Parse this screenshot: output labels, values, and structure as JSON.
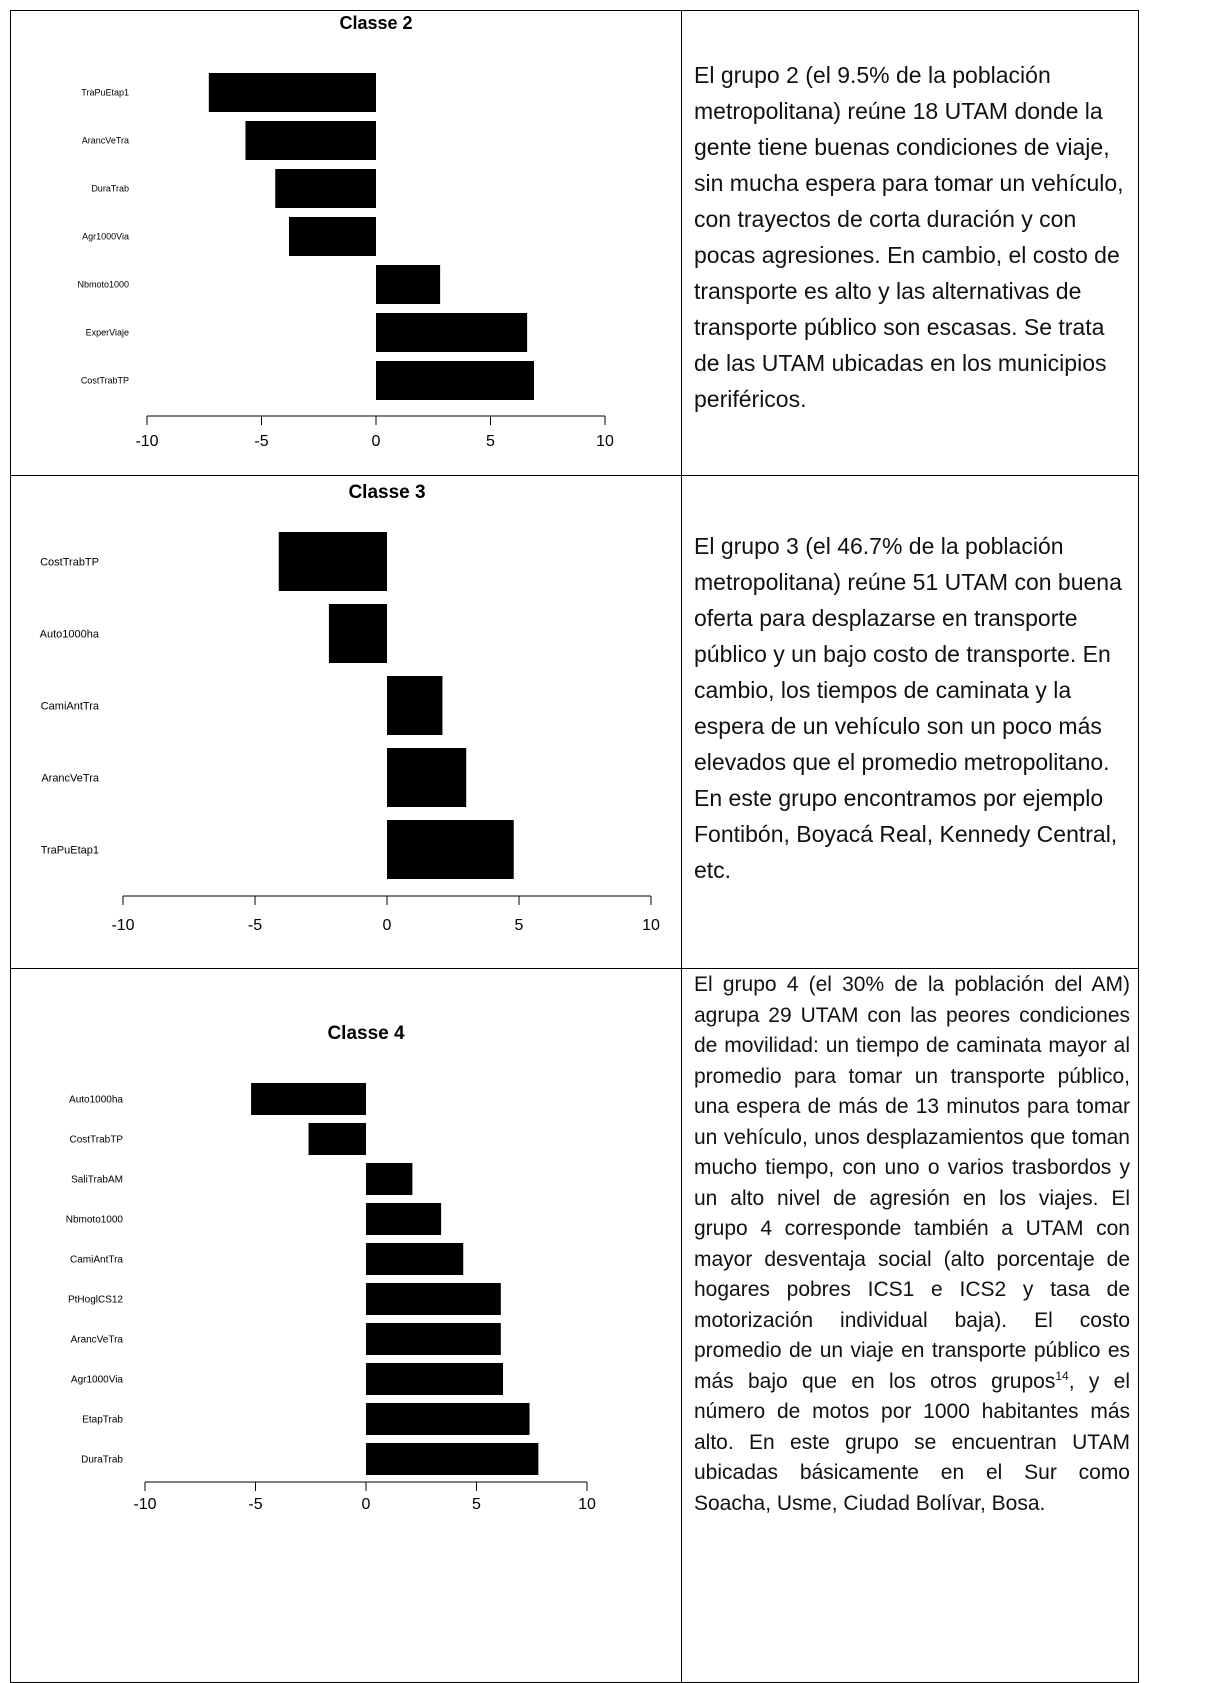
{
  "rows": [
    {
      "chart_data": {
        "type": "bar",
        "orientation": "horizontal",
        "title": "Classe 2",
        "categories": [
          "TraPuEtap1",
          "ArancVeTra",
          "DuraTrab",
          "Agr1000Via",
          "Nbmoto1000",
          "ExperViaje",
          "CostTrabTP"
        ],
        "values": [
          -7.3,
          -5.7,
          -4.4,
          -3.8,
          2.8,
          6.6,
          6.9
        ],
        "xlim": [
          -10,
          10
        ],
        "xticks": [
          -10,
          -5,
          0,
          5,
          10
        ],
        "grid": false,
        "bar_color": "#000000"
      },
      "text": "El grupo 2 (el 9.5% de la población metropolitana) reúne 18 UTAM donde la gente tiene buenas condiciones de viaje, sin mucha espera para tomar un vehículo, con trayectos de corta duración y con pocas agresiones. En cambio, el costo de transporte es alto y las alternativas de transporte público son escasas. Se trata de las UTAM ubicadas en los municipios periféricos."
    },
    {
      "chart_data": {
        "type": "bar",
        "orientation": "horizontal",
        "title": "Classe 3",
        "categories": [
          "CostTrabTP",
          "Auto1000ha",
          "CamiAntTra",
          "ArancVeTra",
          "TraPuEtap1"
        ],
        "values": [
          -4.1,
          -2.2,
          2.1,
          3.0,
          4.8
        ],
        "xlim": [
          -10,
          10
        ],
        "xticks": [
          -10,
          -5,
          0,
          5,
          10
        ],
        "grid": false,
        "bar_color": "#000000"
      },
      "text": "El grupo 3 (el 46.7% de la población metropolitana) reúne 51 UTAM con buena oferta para desplazarse en transporte público y un bajo costo de transporte. En cambio, los tiempos de caminata y la espera de un vehículo son un poco más elevados que el promedio metropolitano. En este grupo encontramos por ejemplo Fontibón, Boyacá Real, Kennedy Central, etc."
    },
    {
      "chart_data": {
        "type": "bar",
        "orientation": "horizontal",
        "title": "Classe 4",
        "categories": [
          "Auto1000ha",
          "CostTrabTP",
          "SaliTrabAM",
          "Nbmoto1000",
          "CamiAntTra",
          "PtHoglCS12",
          "ArancVeTra",
          "Agr1000Via",
          "EtapTrab",
          "DuraTrab"
        ],
        "values": [
          -5.2,
          -2.6,
          2.1,
          3.4,
          4.4,
          6.1,
          6.1,
          6.2,
          7.4,
          7.8
        ],
        "xlim": [
          -10,
          10
        ],
        "xticks": [
          -10,
          -5,
          0,
          5,
          10
        ],
        "grid": false,
        "bar_color": "#000000"
      },
      "text_before_ref": "El grupo 4 (el 30% de la población del AM) agrupa 29 UTAM con las peores condiciones de movilidad: un tiempo de caminata mayor al promedio para tomar un transporte público, una espera de más de 13 minutos para tomar un vehículo, unos desplazamientos que toman mucho tiempo, con uno o varios trasbordos y un alto nivel de agresión en los viajes. El grupo 4 corresponde también a UTAM con mayor desventaja social (alto porcentaje de hogares pobres ICS1 e ICS2 y tasa de motorización individual baja). El costo promedio de un viaje en transporte público es más bajo que en los otros grupos",
      "footnote_ref": "14",
      "text_after_ref": ", y el número de motos por 1000 habitantes más alto. En este grupo se encuentran UTAM ubicadas básicamente en el Sur como Soacha, Usme, Ciudad Bolívar, Bosa."
    }
  ]
}
